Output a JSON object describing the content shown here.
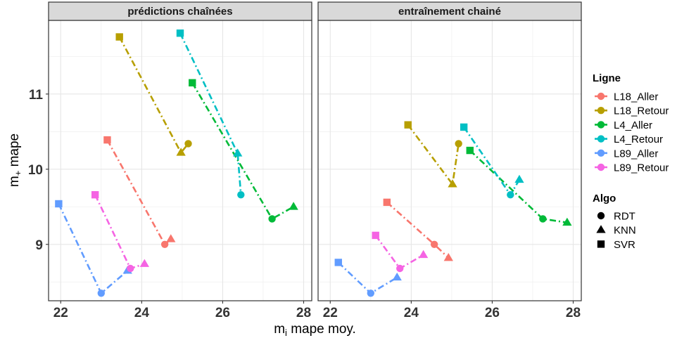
{
  "chart_data": {
    "type": "scatter",
    "x_axis_label": "m",
    "x_axis_label_sub": "i",
    "x_axis_label_rest": " mape moy.",
    "y_axis_label": "m",
    "y_axis_label_sub": "+",
    "y_axis_label_rest": " mape",
    "xlim": [
      21.7,
      28.2
    ],
    "ylim": [
      8.25,
      11.98
    ],
    "x_ticks": [
      "22",
      "24",
      "26",
      "28"
    ],
    "x_tick_values": [
      22,
      24,
      26,
      28
    ],
    "y_ticks": [
      "9",
      "10",
      "11"
    ],
    "y_tick_values": [
      9,
      10,
      11
    ],
    "grid": true,
    "legend_position": "right",
    "legend": {
      "line_title": "Ligne",
      "algo_title": "Algo",
      "lines": [
        {
          "key": "L18_Aller",
          "label": "L18_Aller",
          "color": "#F8766D"
        },
        {
          "key": "L18_Retour",
          "label": "L18_Retour",
          "color": "#B79F00"
        },
        {
          "key": "L4_Aller",
          "label": "L4_Aller",
          "color": "#00BA38"
        },
        {
          "key": "L4_Retour",
          "label": "L4_Retour",
          "color": "#00BFC4"
        },
        {
          "key": "L89_Aller",
          "label": "L89_Aller",
          "color": "#619CFF"
        },
        {
          "key": "L89_Retour",
          "label": "L89_Retour",
          "color": "#F564E3"
        }
      ],
      "algos": [
        {
          "key": "RDT",
          "label": "RDT",
          "shape": "circle"
        },
        {
          "key": "KNN",
          "label": "KNN",
          "shape": "triangle"
        },
        {
          "key": "SVR",
          "label": "SVR",
          "shape": "square"
        }
      ]
    },
    "panels": [
      {
        "title": "prédictions chaînées",
        "series": [
          {
            "name": "L18_Aller",
            "points": [
              {
                "algo": "SVR",
                "x": 23.15,
                "y": 10.39
              },
              {
                "algo": "RDT",
                "x": 24.57,
                "y": 9.0
              },
              {
                "algo": "KNN",
                "x": 24.72,
                "y": 9.07
              }
            ]
          },
          {
            "name": "L18_Retour",
            "points": [
              {
                "algo": "SVR",
                "x": 23.45,
                "y": 11.76
              },
              {
                "algo": "KNN",
                "x": 24.97,
                "y": 10.22
              },
              {
                "algo": "RDT",
                "x": 25.15,
                "y": 10.34
              }
            ]
          },
          {
            "name": "L4_Aller",
            "points": [
              {
                "algo": "SVR",
                "x": 25.25,
                "y": 11.15
              },
              {
                "algo": "RDT",
                "x": 27.22,
                "y": 9.34
              },
              {
                "algo": "KNN",
                "x": 27.75,
                "y": 9.5
              }
            ]
          },
          {
            "name": "L4_Retour",
            "points": [
              {
                "algo": "SVR",
                "x": 24.95,
                "y": 11.81
              },
              {
                "algo": "KNN",
                "x": 26.37,
                "y": 10.21
              },
              {
                "algo": "RDT",
                "x": 26.45,
                "y": 9.66
              }
            ]
          },
          {
            "name": "L89_Aller",
            "points": [
              {
                "algo": "SVR",
                "x": 21.95,
                "y": 9.54
              },
              {
                "algo": "RDT",
                "x": 23.0,
                "y": 8.35
              },
              {
                "algo": "KNN",
                "x": 23.65,
                "y": 8.65
              }
            ]
          },
          {
            "name": "L89_Retour",
            "points": [
              {
                "algo": "SVR",
                "x": 22.85,
                "y": 9.66
              },
              {
                "algo": "RDT",
                "x": 23.72,
                "y": 8.68
              },
              {
                "algo": "KNN",
                "x": 24.07,
                "y": 8.74
              }
            ]
          }
        ]
      },
      {
        "title": "entraînement chainé",
        "series": [
          {
            "name": "L18_Aller",
            "points": [
              {
                "algo": "SVR",
                "x": 23.4,
                "y": 9.56
              },
              {
                "algo": "RDT",
                "x": 24.57,
                "y": 9.0
              },
              {
                "algo": "KNN",
                "x": 24.92,
                "y": 8.82
              }
            ]
          },
          {
            "name": "L18_Retour",
            "points": [
              {
                "algo": "SVR",
                "x": 23.92,
                "y": 10.59
              },
              {
                "algo": "KNN",
                "x": 25.02,
                "y": 9.8
              },
              {
                "algo": "RDT",
                "x": 25.17,
                "y": 10.34
              }
            ]
          },
          {
            "name": "L4_Aller",
            "points": [
              {
                "algo": "SVR",
                "x": 25.45,
                "y": 10.25
              },
              {
                "algo": "RDT",
                "x": 27.25,
                "y": 9.34
              },
              {
                "algo": "KNN",
                "x": 27.85,
                "y": 9.29
              }
            ]
          },
          {
            "name": "L4_Retour",
            "points": [
              {
                "algo": "SVR",
                "x": 25.3,
                "y": 10.56
              },
              {
                "algo": "RDT",
                "x": 26.45,
                "y": 9.66
              },
              {
                "algo": "KNN",
                "x": 26.67,
                "y": 9.86
              }
            ]
          },
          {
            "name": "L89_Aller",
            "points": [
              {
                "algo": "SVR",
                "x": 22.2,
                "y": 8.76
              },
              {
                "algo": "RDT",
                "x": 23.0,
                "y": 8.35
              },
              {
                "algo": "KNN",
                "x": 23.65,
                "y": 8.56
              }
            ]
          },
          {
            "name": "L89_Retour",
            "points": [
              {
                "algo": "SVR",
                "x": 23.12,
                "y": 9.12
              },
              {
                "algo": "RDT",
                "x": 23.72,
                "y": 8.68
              },
              {
                "algo": "KNN",
                "x": 24.3,
                "y": 8.86
              }
            ]
          }
        ]
      }
    ]
  }
}
